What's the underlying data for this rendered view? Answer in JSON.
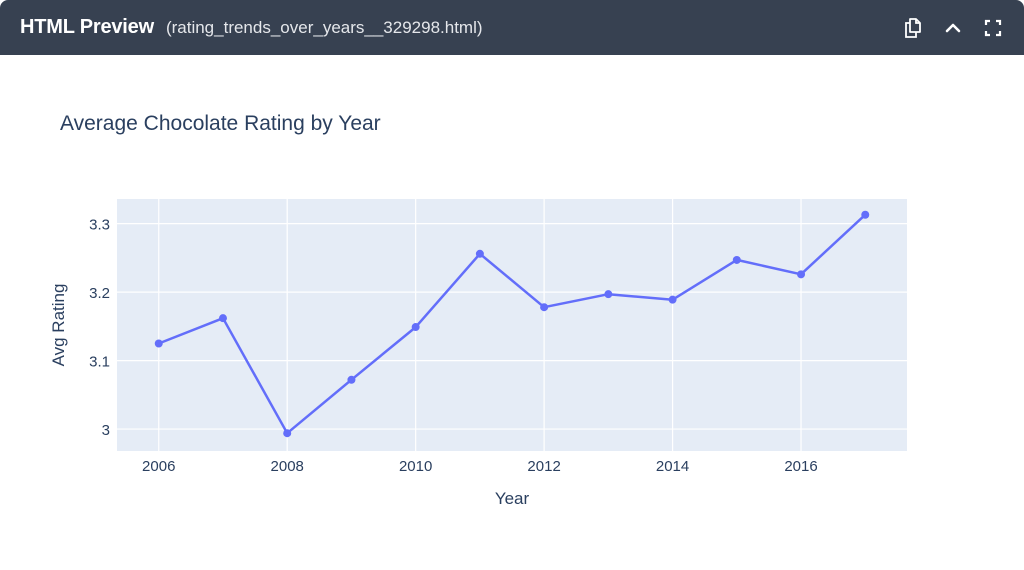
{
  "window": {
    "title": "HTML Preview",
    "filename": "(rating_trends_over_years__329298.html)",
    "icons": [
      "copy-icon",
      "chevron-up-icon",
      "fullscreen-icon"
    ]
  },
  "colors": {
    "titlebar": "#374151",
    "plot_bg": "#e5ecf6",
    "grid": "#ffffff",
    "line": "#636efa",
    "text": "#2a3f5f"
  },
  "chart_data": {
    "type": "line",
    "title": "Average Chocolate Rating by Year",
    "xlabel": "Year",
    "ylabel": "Avg Rating",
    "x": [
      2006,
      2007,
      2008,
      2009,
      2010,
      2011,
      2012,
      2013,
      2014,
      2015,
      2016,
      2017
    ],
    "series": [
      {
        "name": "Avg Rating",
        "values": [
          3.125,
          3.162,
          2.994,
          3.072,
          3.149,
          3.256,
          3.178,
          3.197,
          3.189,
          3.247,
          3.226,
          3.313
        ]
      }
    ],
    "x_ticks": [
      "2006",
      "2008",
      "2010",
      "2012",
      "2014",
      "2016"
    ],
    "y_ticks": [
      "3",
      "3.1",
      "3.2",
      "3.3"
    ],
    "xlim": [
      2005.35,
      2017.65
    ],
    "ylim": [
      2.968,
      3.336
    ],
    "grid": true,
    "legend": false,
    "markers": true
  }
}
